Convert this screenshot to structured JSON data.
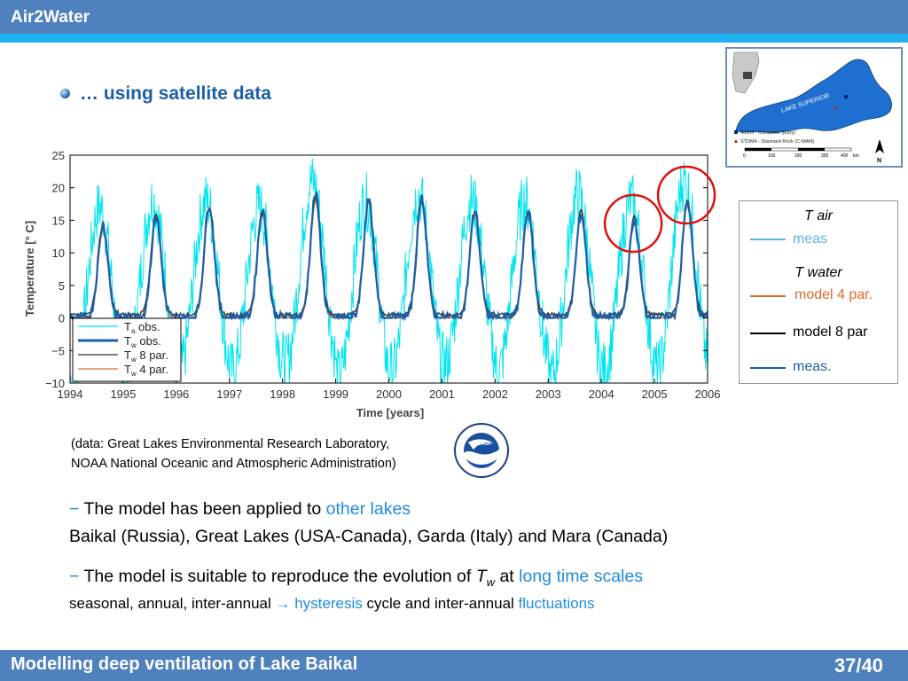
{
  "header": {
    "title": "Air2Water"
  },
  "footer": {
    "title": "Modelling deep ventilation of Lake Baikal",
    "page": "37/40"
  },
  "heading": "… using satellite data",
  "map": {
    "label": "LAKE SUPERIOR",
    "legend": [
      "45004 - Marquette (buoy)",
      "STDM4 - Stannard Rock (C-MAN)"
    ],
    "scale_ticks": [
      "0",
      "100",
      "200",
      "300",
      "400"
    ],
    "scale_unit": "km",
    "north": "N"
  },
  "chart_data": {
    "type": "line",
    "xlabel": "Time [years]",
    "ylabel": "Temperature [° C]",
    "xlim": [
      1994,
      2006
    ],
    "ylim": [
      -10,
      25
    ],
    "x_ticks": [
      "1994",
      "1995",
      "1996",
      "1997",
      "1998",
      "1999",
      "2000",
      "2001",
      "2002",
      "2003",
      "2004",
      "2005",
      "2006"
    ],
    "y_ticks": [
      "25",
      "20",
      "15",
      "10",
      "5",
      "0",
      "−5",
      "−10"
    ],
    "years": [
      1994,
      1995,
      1996,
      1997,
      1998,
      1999,
      2000,
      2001,
      2002,
      2003,
      2004,
      2005
    ],
    "series": [
      {
        "name": "Ta obs.",
        "name_main": "T",
        "name_sub": "a",
        "name_rest": " obs.",
        "color": "#00e5ee",
        "peak": [
          20,
          21,
          21,
          20,
          24,
          21,
          22,
          21,
          21,
          22,
          21,
          24
        ],
        "winter_min": [
          -10,
          -8,
          -8,
          -8,
          -7,
          -9,
          -8,
          -7,
          -8,
          -9,
          -8,
          -8
        ]
      },
      {
        "name": "Tw obs.",
        "name_main": "T",
        "name_sub": "w",
        "name_rest": " obs.",
        "color": "#1c5fa8",
        "peak": [
          14.5,
          15.5,
          17.5,
          16.5,
          19,
          18,
          18.5,
          16.5,
          16.5,
          16,
          15,
          18
        ],
        "winter_min": [
          0,
          0,
          0,
          0,
          0,
          0,
          0,
          0,
          0,
          0,
          0,
          0
        ]
      },
      {
        "name": "Tw 8 par.",
        "name_main": "T",
        "name_sub": "w",
        "name_rest": " 8 par.",
        "color": "#333333",
        "peak": [
          14,
          16,
          17,
          16.5,
          18.5,
          18,
          18.5,
          16.5,
          16.5,
          16.5,
          15.5,
          18
        ],
        "winter_min": [
          0.5,
          0.5,
          0.5,
          0.5,
          0.5,
          0.5,
          0.5,
          0.5,
          0.5,
          0.5,
          0.5,
          0.5
        ]
      },
      {
        "name": "Tw 4 par.",
        "name_main": "T",
        "name_sub": "w",
        "name_rest": " 4 par.",
        "color": "#e06a2c",
        "peak": [
          13.5,
          15.5,
          17,
          16,
          18,
          18,
          18,
          16,
          16,
          16,
          15,
          17.5
        ],
        "winter_min": [
          0,
          0,
          0,
          0,
          0,
          0,
          0,
          0,
          0,
          0,
          0,
          0
        ]
      }
    ],
    "legend_position": "bottom-left",
    "grid": false,
    "highlight_circles": [
      2004.6,
      2005.6
    ]
  },
  "legend2": {
    "t_air": "T air",
    "t_air_meas": "meas",
    "t_water": "T water",
    "model4": "model 4 par.",
    "model8": "model 8 par",
    "meas": "meas.",
    "colors": {
      "air": "#5ab4e6",
      "model4": "#e06a2c",
      "model8": "#000000",
      "meas": "#1c5fa8"
    }
  },
  "source": {
    "line1": "(data: Great Lakes Environmental Research Laboratory,",
    "line2": "NOAA National Oceanic and Atmospheric Administration)",
    "logo_text": "NOAA"
  },
  "points": [
    {
      "dash": "−",
      "text": " The model has been applied to ",
      "highlight": "other lakes",
      "sub": "Baikal (Russia), Great Lakes (USA-Canada), Garda (Italy) and Mara (Canada)"
    },
    {
      "dash": "−",
      "text": " The model is suitable to reproduce the evolution of ",
      "var": "T",
      "var_sub": "w",
      "mid": " at ",
      "highlight": "long time scales",
      "sub1": "seasonal, annual, inter-annual ",
      "arrow": "→",
      "sub_hl1": " hysteresis",
      "sub2": " cycle and inter-annual ",
      "sub_hl2": "fluctuations"
    }
  ]
}
